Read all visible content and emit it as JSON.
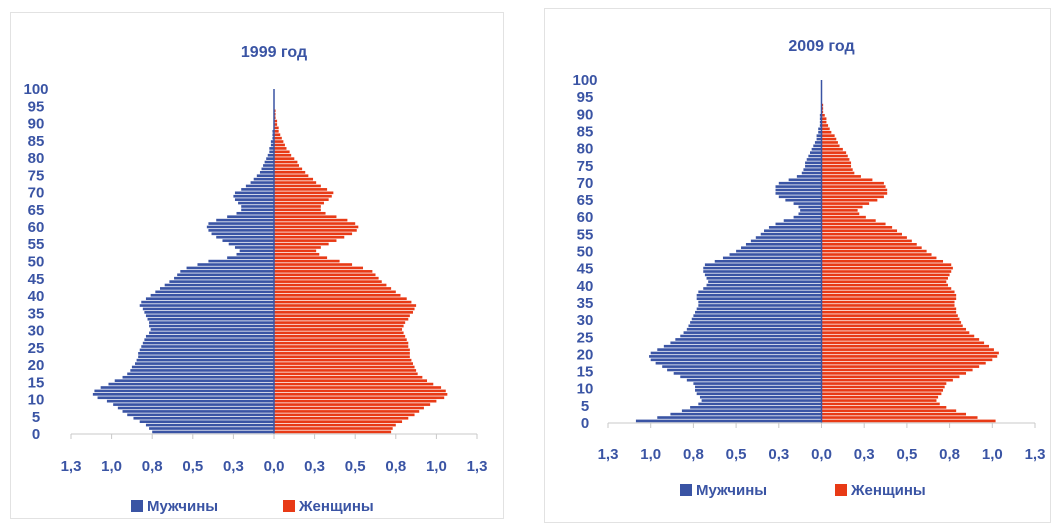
{
  "chart_data": [
    {
      "type": "bar",
      "orientation": "horizontal",
      "layout": "population-pyramid",
      "title": "1999 год",
      "y_ticks": [
        "0",
        "5",
        "10",
        "15",
        "20",
        "25",
        "30",
        "35",
        "40",
        "45",
        "50",
        "55",
        "60",
        "65",
        "70",
        "75",
        "80",
        "85",
        "90",
        "95",
        "100"
      ],
      "x_ticks": [
        "1,3",
        "1,0",
        "0,8",
        "0,5",
        "0,3",
        "0,0",
        "0,3",
        "0,5",
        "0,8",
        "1,0",
        "1,3"
      ],
      "xlim": [
        -1.3,
        1.3
      ],
      "ylim": [
        0,
        100
      ],
      "legend": "bottom",
      "grid": false,
      "ages": [
        0,
        1,
        2,
        3,
        4,
        5,
        6,
        7,
        8,
        9,
        10,
        11,
        12,
        13,
        14,
        15,
        16,
        17,
        18,
        19,
        20,
        21,
        22,
        23,
        24,
        25,
        26,
        27,
        28,
        29,
        30,
        31,
        32,
        33,
        34,
        35,
        36,
        37,
        38,
        39,
        40,
        41,
        42,
        43,
        44,
        45,
        46,
        47,
        48,
        49,
        50,
        51,
        52,
        53,
        54,
        55,
        56,
        57,
        58,
        59,
        60,
        61,
        62,
        63,
        64,
        65,
        66,
        67,
        68,
        69,
        70,
        71,
        72,
        73,
        74,
        75,
        76,
        77,
        78,
        79,
        80,
        81,
        82,
        83,
        84,
        85,
        86,
        87,
        88,
        89,
        90,
        91,
        92,
        93,
        94,
        95,
        96,
        97,
        98,
        99,
        100
      ],
      "series": [
        {
          "name": "Мужчины",
          "color": "#3a54a4",
          "values": [
            0.78,
            0.8,
            0.82,
            0.86,
            0.9,
            0.94,
            0.97,
            1.0,
            1.03,
            1.07,
            1.13,
            1.16,
            1.15,
            1.11,
            1.06,
            1.02,
            0.97,
            0.94,
            0.92,
            0.91,
            0.89,
            0.88,
            0.87,
            0.87,
            0.86,
            0.85,
            0.84,
            0.83,
            0.82,
            0.8,
            0.79,
            0.8,
            0.8,
            0.81,
            0.82,
            0.83,
            0.84,
            0.86,
            0.85,
            0.82,
            0.79,
            0.76,
            0.73,
            0.7,
            0.67,
            0.64,
            0.62,
            0.6,
            0.56,
            0.49,
            0.42,
            0.3,
            0.24,
            0.22,
            0.25,
            0.29,
            0.33,
            0.37,
            0.4,
            0.42,
            0.43,
            0.42,
            0.37,
            0.3,
            0.24,
            0.21,
            0.21,
            0.23,
            0.25,
            0.26,
            0.25,
            0.21,
            0.18,
            0.15,
            0.13,
            0.11,
            0.09,
            0.08,
            0.07,
            0.06,
            0.05,
            0.04,
            0.03,
            0.03,
            0.02,
            0.02,
            0.01,
            0.01,
            0.01,
            0.0,
            0.0,
            0.0,
            0.0,
            0.0,
            0.0,
            0.0,
            0.0,
            0.0,
            0.0,
            0.0,
            0.0
          ]
        },
        {
          "name": "Женщины",
          "color": "#e83a16",
          "values": [
            0.75,
            0.76,
            0.78,
            0.82,
            0.86,
            0.9,
            0.93,
            0.96,
            1.0,
            1.04,
            1.09,
            1.11,
            1.1,
            1.07,
            1.02,
            0.98,
            0.95,
            0.92,
            0.91,
            0.9,
            0.89,
            0.88,
            0.87,
            0.87,
            0.87,
            0.86,
            0.86,
            0.85,
            0.84,
            0.83,
            0.82,
            0.83,
            0.84,
            0.86,
            0.87,
            0.89,
            0.9,
            0.91,
            0.88,
            0.85,
            0.81,
            0.78,
            0.75,
            0.72,
            0.69,
            0.67,
            0.65,
            0.63,
            0.57,
            0.5,
            0.42,
            0.34,
            0.29,
            0.27,
            0.3,
            0.35,
            0.4,
            0.45,
            0.5,
            0.53,
            0.54,
            0.52,
            0.47,
            0.4,
            0.33,
            0.3,
            0.3,
            0.32,
            0.35,
            0.37,
            0.38,
            0.34,
            0.3,
            0.27,
            0.25,
            0.22,
            0.2,
            0.18,
            0.16,
            0.15,
            0.13,
            0.11,
            0.1,
            0.08,
            0.07,
            0.06,
            0.05,
            0.04,
            0.03,
            0.03,
            0.02,
            0.02,
            0.01,
            0.01,
            0.01,
            0.0,
            0.0,
            0.0,
            0.0,
            0.0,
            0.0
          ]
        }
      ]
    },
    {
      "type": "bar",
      "orientation": "horizontal",
      "layout": "population-pyramid",
      "title": "2009 год",
      "y_ticks": [
        "0",
        "5",
        "10",
        "15",
        "20",
        "25",
        "30",
        "35",
        "40",
        "45",
        "50",
        "55",
        "60",
        "65",
        "70",
        "75",
        "80",
        "85",
        "90",
        "95",
        "100"
      ],
      "x_ticks": [
        "1,3",
        "1,0",
        "0,8",
        "0,5",
        "0,3",
        "0,0",
        "0,3",
        "0,5",
        "0,8",
        "1,0",
        "1,3"
      ],
      "xlim": [
        -1.3,
        1.3
      ],
      "ylim": [
        0,
        100
      ],
      "legend": "bottom",
      "grid": false,
      "ages": [
        0,
        1,
        2,
        3,
        4,
        5,
        6,
        7,
        8,
        9,
        10,
        11,
        12,
        13,
        14,
        15,
        16,
        17,
        18,
        19,
        20,
        21,
        22,
        23,
        24,
        25,
        26,
        27,
        28,
        29,
        30,
        31,
        32,
        33,
        34,
        35,
        36,
        37,
        38,
        39,
        40,
        41,
        42,
        43,
        44,
        45,
        46,
        47,
        48,
        49,
        50,
        51,
        52,
        53,
        54,
        55,
        56,
        57,
        58,
        59,
        60,
        61,
        62,
        63,
        64,
        65,
        66,
        67,
        68,
        69,
        70,
        71,
        72,
        73,
        74,
        75,
        76,
        77,
        78,
        79,
        80,
        81,
        82,
        83,
        84,
        85,
        86,
        87,
        88,
        89,
        90,
        91,
        92,
        93,
        94,
        95,
        96,
        97,
        98,
        99,
        100
      ],
      "series": [
        {
          "name": "Мужчины",
          "color": "#3a54a4",
          "values": [
            1.13,
            1.0,
            0.92,
            0.85,
            0.8,
            0.75,
            0.73,
            0.74,
            0.76,
            0.77,
            0.77,
            0.78,
            0.82,
            0.86,
            0.9,
            0.94,
            0.97,
            1.01,
            1.04,
            1.05,
            1.04,
            1.0,
            0.96,
            0.92,
            0.89,
            0.86,
            0.84,
            0.82,
            0.81,
            0.8,
            0.79,
            0.78,
            0.77,
            0.76,
            0.75,
            0.75,
            0.76,
            0.76,
            0.75,
            0.72,
            0.7,
            0.69,
            0.7,
            0.71,
            0.72,
            0.72,
            0.71,
            0.65,
            0.6,
            0.56,
            0.52,
            0.49,
            0.46,
            0.43,
            0.4,
            0.37,
            0.35,
            0.32,
            0.28,
            0.23,
            0.17,
            0.14,
            0.13,
            0.14,
            0.17,
            0.22,
            0.26,
            0.28,
            0.28,
            0.28,
            0.26,
            0.2,
            0.15,
            0.12,
            0.11,
            0.1,
            0.1,
            0.09,
            0.08,
            0.07,
            0.06,
            0.05,
            0.04,
            0.03,
            0.03,
            0.02,
            0.02,
            0.01,
            0.01,
            0.01,
            0.01,
            0.0,
            0.0,
            0.0,
            0.0,
            0.0,
            0.0,
            0.0,
            0.0,
            0.0,
            0.0
          ]
        },
        {
          "name": "Женщины",
          "color": "#e83a16",
          "values": [
            1.06,
            0.95,
            0.88,
            0.82,
            0.76,
            0.72,
            0.7,
            0.71,
            0.73,
            0.74,
            0.75,
            0.76,
            0.8,
            0.84,
            0.88,
            0.92,
            0.96,
            1.0,
            1.04,
            1.07,
            1.08,
            1.05,
            1.02,
            0.99,
            0.96,
            0.93,
            0.9,
            0.88,
            0.86,
            0.85,
            0.84,
            0.83,
            0.82,
            0.82,
            0.81,
            0.81,
            0.82,
            0.82,
            0.81,
            0.79,
            0.77,
            0.76,
            0.77,
            0.78,
            0.79,
            0.8,
            0.79,
            0.74,
            0.7,
            0.67,
            0.64,
            0.61,
            0.58,
            0.55,
            0.52,
            0.49,
            0.46,
            0.43,
            0.39,
            0.33,
            0.27,
            0.23,
            0.22,
            0.25,
            0.29,
            0.34,
            0.38,
            0.4,
            0.4,
            0.39,
            0.38,
            0.31,
            0.24,
            0.2,
            0.19,
            0.18,
            0.18,
            0.17,
            0.16,
            0.15,
            0.13,
            0.11,
            0.1,
            0.09,
            0.08,
            0.06,
            0.05,
            0.04,
            0.03,
            0.03,
            0.02,
            0.01,
            0.01,
            0.01,
            0.0,
            0.0,
            0.0,
            0.0,
            0.0,
            0.0,
            0.0
          ]
        }
      ]
    }
  ]
}
